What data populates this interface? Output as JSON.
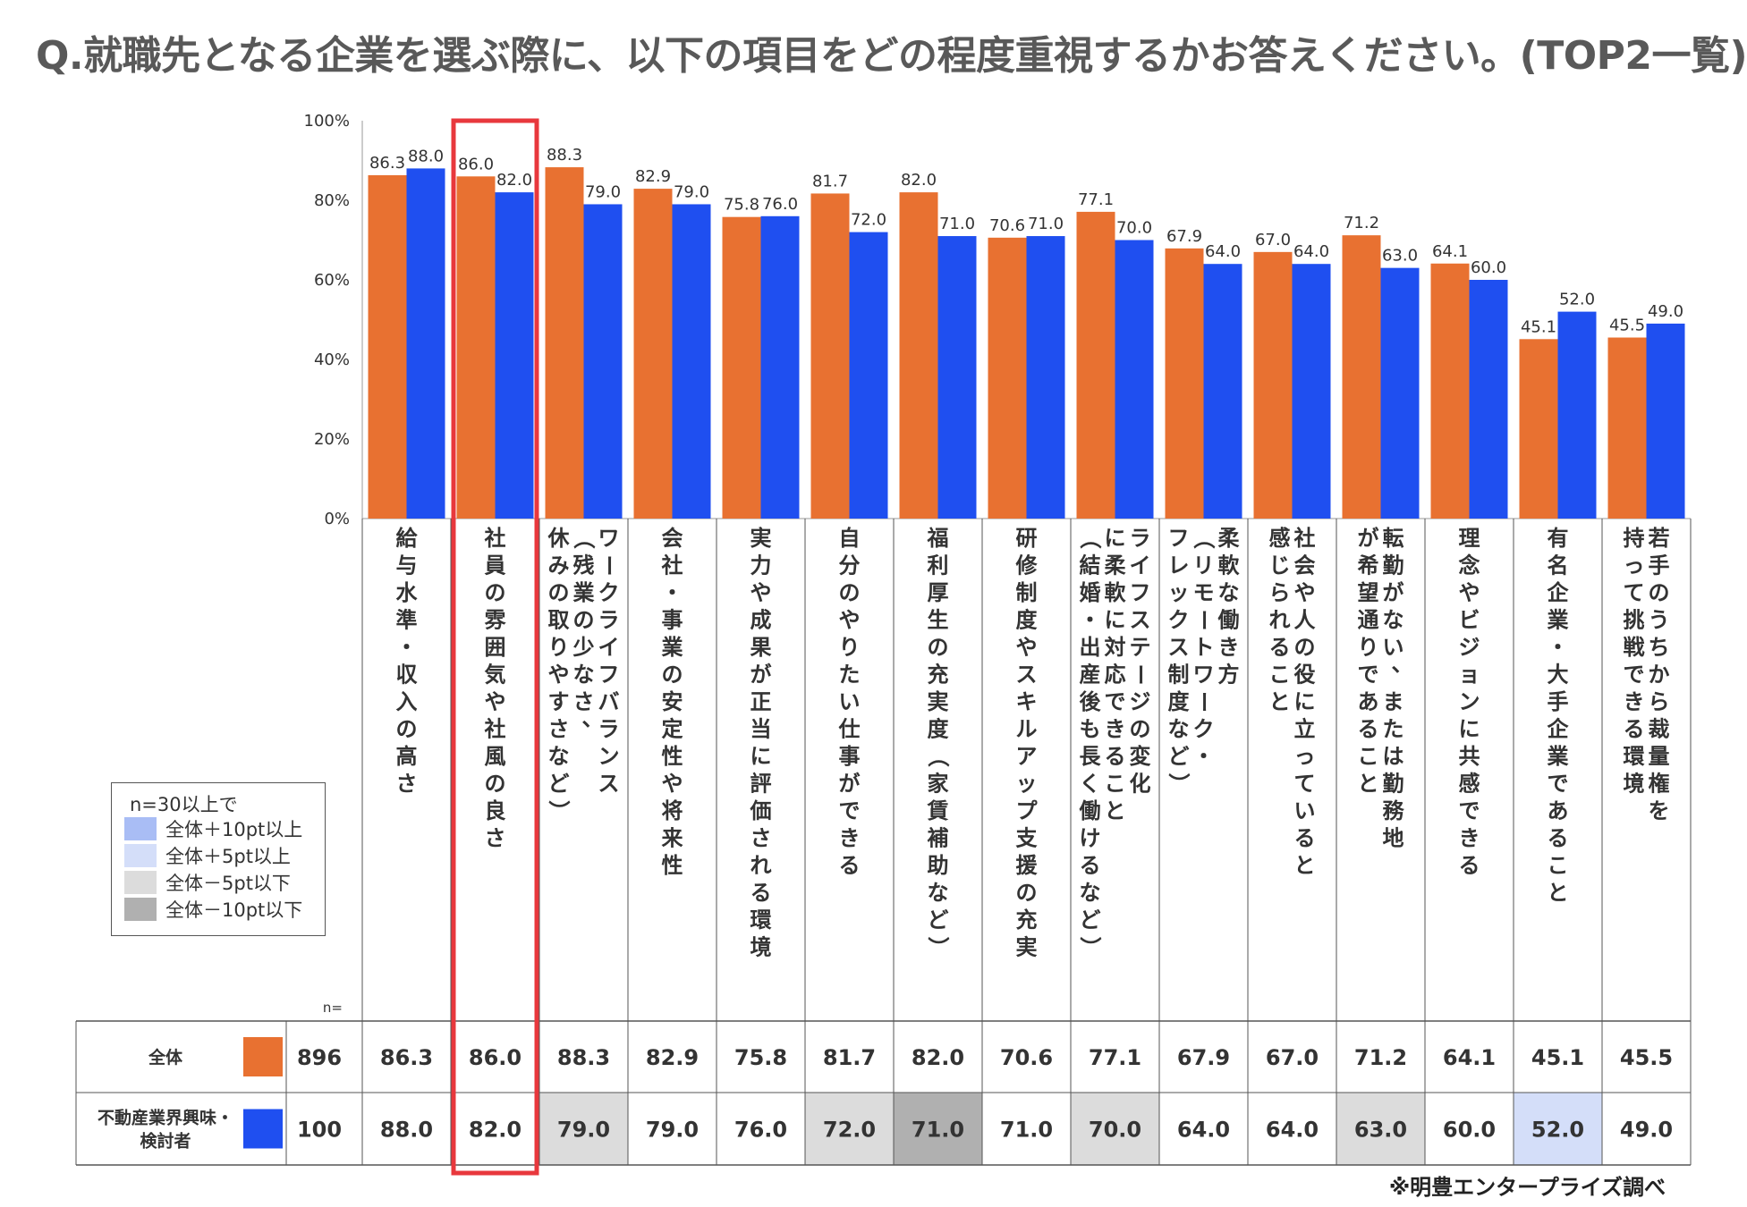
{
  "title": "Q.就職先となる企業を選ぶ際に、以下の項目をどの程度重視するかお答えください。(TOP2一覧)",
  "source": "※明豊エンタープライズ調べ",
  "n_header": "n=",
  "legend": {
    "title": "n=30以上で",
    "items": [
      {
        "label": "全体＋10pt以上",
        "color": "#a9bdf5"
      },
      {
        "label": "全体＋5pt以上",
        "color": "#d4def9"
      },
      {
        "label": "全体－5pt以下",
        "color": "#dcdcdc"
      },
      {
        "label": "全体－10pt以下",
        "color": "#b0b0b0"
      }
    ]
  },
  "chart_data": {
    "type": "bar",
    "ylim": [
      0,
      100
    ],
    "yticks": [
      "0%",
      "20%",
      "40%",
      "60%",
      "80%",
      "100%"
    ],
    "categories": [
      "給与水準・収入の高さ",
      "社員の雰囲気や社風の良さ",
      "ワークライフバランス（残業の少なさ、休みの取りやすさなど）",
      "会社・事業の安定性や将来性",
      "実力や成果が正当に評価される環境",
      "自分のやりたい仕事ができる",
      "福利厚生の充実度（家賃補助など）",
      "研修制度やスキルアップ支援の充実",
      "ライフステージの変化に柔軟に対応できること（結婚・出産後も長く働けるなど）",
      "柔軟な働き方（リモートワーク・フレックス制度など）",
      "社会や人の役に立っていると感じられること",
      "転勤がない、または勤務地が希望通りであること",
      "理念やビジョンに共感できる",
      "有名企業・大手企業であること",
      "若手のうちから裁量権を持って挑戦できる環境"
    ],
    "category_lines": [
      [
        "給与水準・収入の高さ"
      ],
      [
        "社員の雰囲気や社風の良さ"
      ],
      [
        "ワークライフバランス",
        "（残業の少なさ、",
        "休みの取りやすさなど）"
      ],
      [
        "会社・事業の安定性や将来性"
      ],
      [
        "実力や成果が正当に評価される環境"
      ],
      [
        "自分のやりたい仕事ができる"
      ],
      [
        "福利厚生の充実度（家賃補助など）"
      ],
      [
        "研修制度やスキルアップ支援の充実"
      ],
      [
        "ライフステージの変化",
        "に柔軟に対応できること",
        "（結婚・出産後も長く働けるなど）"
      ],
      [
        "柔軟な働き方",
        "（リモートワーク・",
        "フレックス制度など）"
      ],
      [
        "社会や人の役に立っていると",
        "感じられること"
      ],
      [
        "転勤がない、または勤務地",
        "が希望通りであること"
      ],
      [
        "理念やビジョンに共感できる"
      ],
      [
        "有名企業・大手企業であること"
      ],
      [
        "若手のうちから裁量権を",
        "持って挑戦できる環境"
      ]
    ],
    "series": [
      {
        "name": "全体",
        "n": "896",
        "color": "#e87131",
        "values": [
          86.3,
          86.0,
          88.3,
          82.9,
          75.8,
          81.7,
          82.0,
          70.6,
          77.1,
          67.9,
          67.0,
          71.2,
          64.1,
          45.1,
          45.5
        ]
      },
      {
        "name": "不動産業界興味・検討者",
        "n": "100",
        "color": "#1f4ff0",
        "values": [
          88.0,
          82.0,
          79.0,
          79.0,
          76.0,
          72.0,
          71.0,
          71.0,
          70.0,
          64.0,
          64.0,
          63.0,
          60.0,
          52.0,
          49.0
        ]
      }
    ],
    "series_labels": [
      [
        "全体"
      ],
      [
        "不動産業界興味・",
        "検討者"
      ]
    ],
    "highlight_category": 1,
    "cell_shading": [
      [
        null,
        null,
        null,
        null,
        null,
        null,
        null,
        null,
        null,
        null,
        null,
        null,
        null,
        null,
        null
      ],
      [
        null,
        null,
        "#dcdcdc",
        null,
        null,
        "#dcdcdc",
        "#b0b0b0",
        null,
        "#dcdcdc",
        null,
        null,
        "#dcdcdc",
        null,
        "#d4def9",
        null
      ]
    ]
  }
}
